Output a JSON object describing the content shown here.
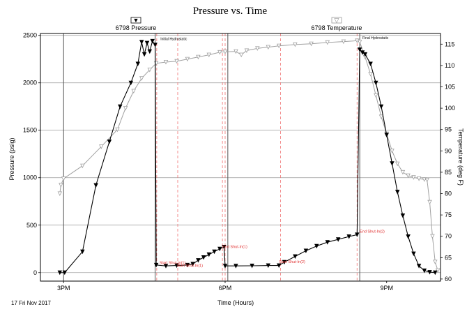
{
  "chart_data": {
    "type": "line",
    "title": "Pressure vs. Time",
    "xlabel": "Time (Hours)",
    "ylabel_left": "Pressure (psig)",
    "ylabel_right": "Temperature (deg F)",
    "date_label": "17 Fri Nov 2017",
    "x_unit": "hours since midnight, 17 Nov 2017",
    "xlim": [
      14.57,
      22.0
    ],
    "ylim_left": [
      -90,
      2520
    ],
    "ylim_right": [
      59.5,
      117.5
    ],
    "x_ticks": [
      {
        "x": 15,
        "label": "3PM"
      },
      {
        "x": 18,
        "label": "6PM"
      },
      {
        "x": 21,
        "label": "9PM"
      }
    ],
    "y_ticks_left": [
      0,
      500,
      1000,
      1500,
      2000,
      2500
    ],
    "y_ticks_right": [
      60,
      65,
      70,
      75,
      80,
      85,
      90,
      95,
      100,
      105,
      110,
      115
    ],
    "grid": true,
    "legend": [
      {
        "name": "6798 Pressure",
        "glyph": "▼",
        "position": "top-left"
      },
      {
        "name": "6798 Temperature",
        "glyph": "▽",
        "position": "top-right"
      }
    ],
    "black_events": [
      15.0,
      16.7,
      18.05,
      20.5
    ],
    "red_events": [
      16.73,
      17.12,
      17.95,
      18.0,
      19.03,
      20.45
    ],
    "annotations": [
      {
        "text": "Initial Hydrostatic",
        "x": 16.8,
        "y": 2450,
        "color": "black"
      },
      {
        "text": "Final Hydrostatic",
        "x": 20.55,
        "y": 2460,
        "color": "black"
      },
      {
        "text": "Start Shut-In(1)",
        "x": 16.78,
        "y": 90,
        "color": "red"
      },
      {
        "text": "Start Shut-In(1)",
        "x": 17.1,
        "y": 60,
        "color": "red"
      },
      {
        "text": "End Shut-In(1)",
        "x": 17.95,
        "y": 260,
        "color": "red"
      },
      {
        "text": "Start Shut-In(2)",
        "x": 19.0,
        "y": 100,
        "color": "red"
      },
      {
        "text": "End Shut-In(2)",
        "x": 20.5,
        "y": 420,
        "color": "red"
      }
    ],
    "series": [
      {
        "name": "6798 Pressure",
        "axis": "left",
        "color": "#000000",
        "marker": "filled-triangle-down",
        "points": [
          [
            14.93,
            0
          ],
          [
            15.02,
            0
          ],
          [
            15.35,
            220
          ],
          [
            15.6,
            920
          ],
          [
            15.85,
            1380
          ],
          [
            16.05,
            1750
          ],
          [
            16.25,
            2000
          ],
          [
            16.38,
            2200
          ],
          [
            16.45,
            2430
          ],
          [
            16.5,
            2300
          ],
          [
            16.55,
            2420
          ],
          [
            16.6,
            2330
          ],
          [
            16.65,
            2440
          ],
          [
            16.7,
            2400
          ],
          [
            16.72,
            80
          ],
          [
            16.9,
            70
          ],
          [
            17.1,
            75
          ],
          [
            17.3,
            80
          ],
          [
            17.4,
            90
          ],
          [
            17.5,
            130
          ],
          [
            17.6,
            160
          ],
          [
            17.7,
            190
          ],
          [
            17.8,
            220
          ],
          [
            17.9,
            250
          ],
          [
            17.98,
            270
          ],
          [
            18.0,
            70
          ],
          [
            18.2,
            70
          ],
          [
            18.5,
            72
          ],
          [
            18.8,
            75
          ],
          [
            19.0,
            75
          ],
          [
            19.1,
            110
          ],
          [
            19.3,
            170
          ],
          [
            19.5,
            230
          ],
          [
            19.7,
            280
          ],
          [
            19.9,
            320
          ],
          [
            20.1,
            350
          ],
          [
            20.3,
            380
          ],
          [
            20.45,
            400
          ],
          [
            20.5,
            2350
          ],
          [
            20.55,
            2320
          ],
          [
            20.6,
            2300
          ],
          [
            20.7,
            2200
          ],
          [
            20.8,
            2000
          ],
          [
            20.9,
            1750
          ],
          [
            21.0,
            1450
          ],
          [
            21.1,
            1150
          ],
          [
            21.2,
            850
          ],
          [
            21.3,
            600
          ],
          [
            21.4,
            380
          ],
          [
            21.5,
            200
          ],
          [
            21.6,
            70
          ],
          [
            21.7,
            20
          ],
          [
            21.8,
            5
          ],
          [
            21.9,
            0
          ]
        ]
      },
      {
        "name": "6798 Temperature",
        "axis": "right",
        "color": "#a0a0a0",
        "marker": "open-triangle-down",
        "points": [
          [
            14.93,
            80
          ],
          [
            14.95,
            82
          ],
          [
            15.0,
            83.5
          ],
          [
            15.35,
            86.5
          ],
          [
            15.7,
            91
          ],
          [
            16.0,
            95
          ],
          [
            16.15,
            100
          ],
          [
            16.3,
            104
          ],
          [
            16.45,
            107
          ],
          [
            16.6,
            109
          ],
          [
            16.72,
            110.5
          ],
          [
            16.9,
            110.8
          ],
          [
            17.1,
            111
          ],
          [
            17.3,
            111.5
          ],
          [
            17.5,
            112
          ],
          [
            17.7,
            112.5
          ],
          [
            17.9,
            113.1
          ],
          [
            18.0,
            113.2
          ],
          [
            18.2,
            113.3
          ],
          [
            18.3,
            112.5
          ],
          [
            18.4,
            113.5
          ],
          [
            18.6,
            114
          ],
          [
            18.8,
            114.3
          ],
          [
            19.0,
            114.6
          ],
          [
            19.3,
            114.9
          ],
          [
            19.6,
            115.1
          ],
          [
            19.9,
            115.4
          ],
          [
            20.2,
            115.6
          ],
          [
            20.45,
            115.8
          ],
          [
            20.5,
            115.5
          ],
          [
            20.6,
            112
          ],
          [
            20.7,
            108
          ],
          [
            20.8,
            103
          ],
          [
            20.9,
            98
          ],
          [
            21.0,
            94
          ],
          [
            21.1,
            90
          ],
          [
            21.2,
            87
          ],
          [
            21.3,
            85
          ],
          [
            21.4,
            84.2
          ],
          [
            21.5,
            83.8
          ],
          [
            21.6,
            83.5
          ],
          [
            21.7,
            83.3
          ],
          [
            21.75,
            83.2
          ],
          [
            21.8,
            78
          ],
          [
            21.85,
            70
          ],
          [
            21.9,
            64
          ],
          [
            21.95,
            62
          ]
        ]
      }
    ]
  }
}
